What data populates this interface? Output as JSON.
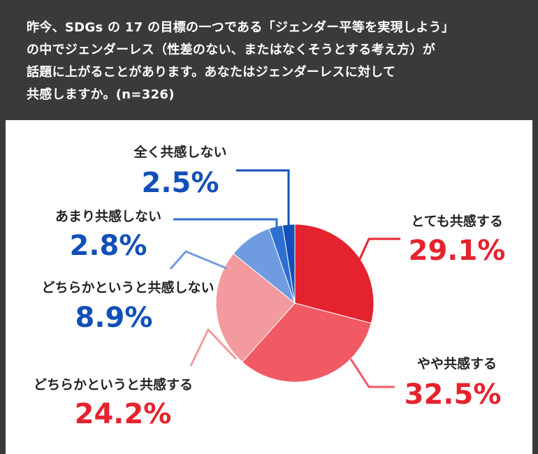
{
  "header": {
    "question_lines": [
      "昨今、SDGs の 17 の目標の一つである「ジェンダー平等を実現しよう」",
      "の中でジェンダーレス（性差のない、またはなくそうとする考え方）が",
      "話題に上がることがあります。あなたはジェンダーレスに対して",
      "共感しますか。(n=326)"
    ]
  },
  "chart_data": {
    "type": "pie",
    "title": "",
    "categories": [
      "とても共感する",
      "やや共感する",
      "どちらかというと共感する",
      "どちらかというと共感しない",
      "あまり共感しない",
      "全く共感しない"
    ],
    "values": [
      29.1,
      32.5,
      24.2,
      8.9,
      2.8,
      2.5
    ],
    "labels": [
      "29.1%",
      "32.5%",
      "24.2%",
      "8.9%",
      "2.8%",
      "2.5%"
    ],
    "slice_colors": [
      "#e5232e",
      "#f15a63",
      "#f39a9e",
      "#6f9ce0",
      "#2f6fcf",
      "#1150b8"
    ],
    "label_colors": [
      "#e5232e",
      "#e5232e",
      "#e5232e",
      "#1150b8",
      "#1150b8",
      "#1150b8"
    ],
    "leader_colors": [
      "#e5232e",
      "#f15a63",
      "#f39a9e",
      "#6f9ce0",
      "#2f6fcf",
      "#1150b8"
    ]
  }
}
